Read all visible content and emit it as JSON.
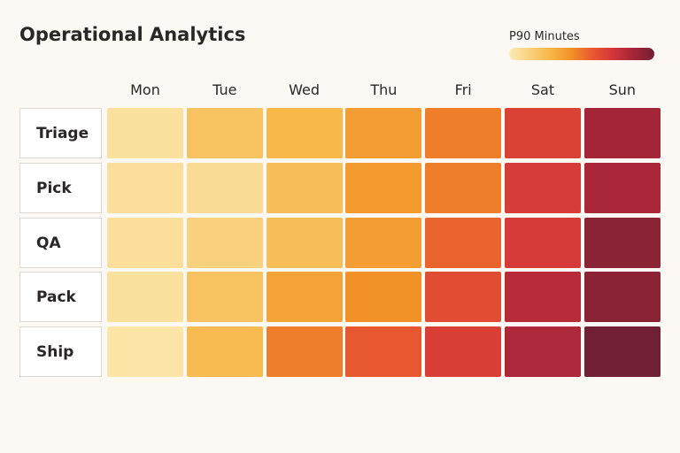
{
  "chart_data": {
    "type": "heatmap",
    "title": "Operational Analytics",
    "legend_title": "P90 Minutes",
    "legend_placement": "top-right",
    "columns": [
      "Mon",
      "Tue",
      "Wed",
      "Thu",
      "Fri",
      "Sat",
      "Sun"
    ],
    "rows": [
      "Triage",
      "Pick",
      "QA",
      "Pack",
      "Ship"
    ],
    "values": [
      [
        8,
        28,
        34,
        45,
        55,
        75,
        90
      ],
      [
        10,
        12,
        30,
        46,
        55,
        77,
        89
      ],
      [
        10,
        20,
        30,
        45,
        62,
        78,
        95
      ],
      [
        8,
        28,
        42,
        50,
        70,
        86,
        95
      ],
      [
        5,
        32,
        55,
        66,
        76,
        88,
        100
      ]
    ],
    "value_range": [
      0,
      100
    ],
    "color_scale": [
      "#fcecb4",
      "#f9d07e",
      "#f8b646",
      "#f29128",
      "#e8592f",
      "#d3363a",
      "#a42537",
      "#722036"
    ]
  }
}
